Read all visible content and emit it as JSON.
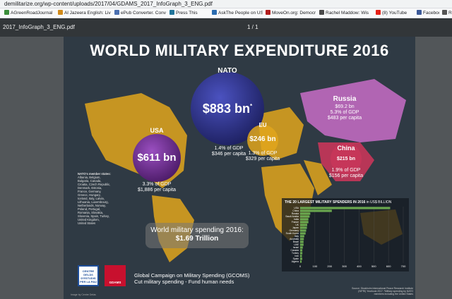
{
  "browser": {
    "url": "demilitarize.org/wp-content/uploads/2017/04/GDAMS_2017_InfoGraph_3_ENG.pdf",
    "bookmarks": [
      {
        "label": "AGreenRoadJournal",
        "color": "#3b8e3b"
      },
      {
        "label": "Al Jazeera English: Liv",
        "color": "#d18a1a"
      },
      {
        "label": "ePub Converter. Conv",
        "color": "#4a6fb0"
      },
      {
        "label": "Press This",
        "color": "#21759b"
      },
      {
        "label": "AskThe People on US",
        "color": "#2b6cb0"
      },
      {
        "label": "MoveOn.org: Democr",
        "color": "#b21e1e"
      },
      {
        "label": "Rachel Maddow: Wis",
        "color": "#4a4a4a"
      },
      {
        "label": "(8) YouTube",
        "color": "#e62117"
      },
      {
        "label": "Facebook",
        "color": "#3b5998"
      },
      {
        "label": "Radiation",
        "color": "#555555"
      }
    ]
  },
  "pdf": {
    "filename": "2017_InfoGraph_3_ENG.pdf",
    "page_indicator": "1 / 1"
  },
  "infographic": {
    "title": "WORLD MILITARY EXPENDITURE 2016",
    "nato": {
      "name": "NATO",
      "amount": "$883 bn",
      "asterisk": "*",
      "gdp": "1.4% of GDP",
      "per_capita": "$346 per capita",
      "color": "#2a2f86"
    },
    "usa": {
      "name": "USA",
      "amount": "$611 bn",
      "gdp": "3.3% of GDP",
      "per_capita": "$1,886 per capita",
      "color": "#6a2a8a"
    },
    "eu": {
      "name": "EU",
      "amount": "$246 bn",
      "gdp": "1.3% of GDP",
      "per_capita": "$329 per capita",
      "color": "#e8a51c"
    },
    "russia": {
      "name": "Russia",
      "amount": "$69.2 bn",
      "gdp": "5.3% of GDP",
      "per_capita": "$483 per capita",
      "color": "#c06ac0"
    },
    "china": {
      "name": "China",
      "amount": "$215 bn",
      "gdp": "1.9% of GDP",
      "per_capita": "$156 per capita",
      "color": "#c8365a"
    },
    "nato_members_heading": "NATO's member states:",
    "nato_members": [
      "Albania, Belgium,",
      "Bulgaria, Canada,",
      "Croatia, Czech Republic,",
      "Denmark, Estonia,",
      "France, Germany,",
      "Greece, Hungary,",
      "Iceland, Italy, Latvia,",
      "Lithuania, Luxembourg,",
      "Netherlands, Norway,",
      "Poland, Portugal,",
      "Romania, Slovakia,",
      "Slovenia, Spain, Turkey,",
      "United Kingdom,",
      "United States"
    ],
    "world_spending_line1": "World military spending 2016:",
    "world_spending_line2": "$1.69 Trillion",
    "campaign_line1": "Global Campaign on Military Spending (GCOMS)",
    "campaign_line2": "Cut military spending - Fund human needs",
    "logo1_text": "CENTRE DELÀS D'ESTUDIS PER LA PAU",
    "logo2_text": "GDAMS",
    "source": "Source: Stockholm International Peace Research Institute (SIPRI) Yearbook 2017. *Military spending by NATO members including the United States",
    "credit": "Image by Centre Delàs"
  },
  "chart_data": {
    "type": "bar",
    "orientation": "horizontal",
    "title": "THE 20 LARGEST MILITARY SPENDERS IN 2016",
    "title_unit": "in US$ BILLION",
    "categories": [
      "USA",
      "China",
      "Russia",
      "Saudi Arabia",
      "India",
      "France",
      "UK",
      "Japan",
      "Germany",
      "South Korea",
      "Italy",
      "Australia",
      "Brazil",
      "UAE",
      "Israel",
      "Canada",
      "Turkey",
      "Iran",
      "Spain",
      "Algeria"
    ],
    "values": [
      611,
      215,
      69,
      64,
      56,
      56,
      48,
      46,
      41,
      37,
      28,
      25,
      23,
      23,
      18,
      15,
      15,
      12,
      14,
      10
    ],
    "x_ticks": [
      0,
      100,
      200,
      300,
      400,
      500,
      600,
      700
    ],
    "xlim": [
      0,
      700
    ],
    "bar_color": "#6aa84f"
  }
}
